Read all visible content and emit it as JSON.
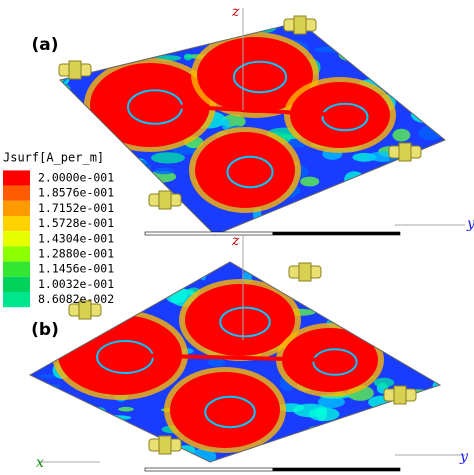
{
  "panels": [
    {
      "label": "(a)",
      "axes": {
        "z": "z",
        "y": "y"
      }
    },
    {
      "label": "(b)",
      "axes": {
        "z": "z",
        "y": "y",
        "x": "x"
      }
    }
  ],
  "legend": {
    "title": "Jsurf[A_per_m]",
    "entries": [
      {
        "label": "2.0000e-001",
        "color": "#ff0000"
      },
      {
        "label": "1.8576e-001",
        "color": "#ff5a00"
      },
      {
        "label": "1.7152e-001",
        "color": "#ff9a00"
      },
      {
        "label": "1.5728e-001",
        "color": "#ffd200"
      },
      {
        "label": "1.4304e-001",
        "color": "#e6ff00"
      },
      {
        "label": "1.2880e-001",
        "color": "#8cff00"
      },
      {
        "label": "1.1456e-001",
        "color": "#32e632"
      },
      {
        "label": "1.0032e-001",
        "color": "#00d25a"
      },
      {
        "label": "8.6082e-002",
        "color": "#00e68c"
      }
    ]
  }
}
